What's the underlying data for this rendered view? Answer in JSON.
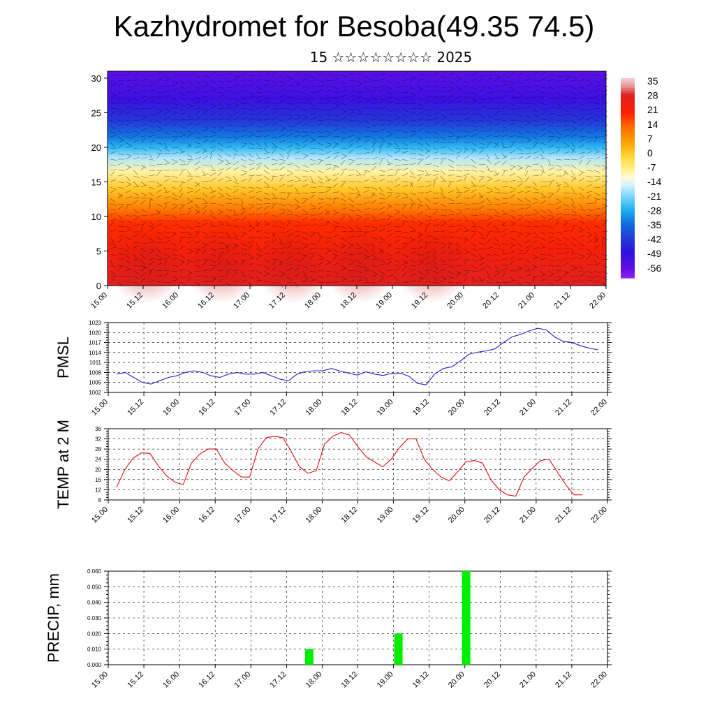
{
  "header": {
    "title": "Kazhydromet for Besoba(49.35 74.5)",
    "subtitle": "15 ☆☆☆☆☆☆☆☆ 2025"
  },
  "colors": {
    "pmsl_line": "#1f1fd6",
    "temp_line": "#e01010",
    "precip_bar": "#00ee00",
    "grid": "#000000"
  },
  "chart_data": [
    {
      "type": "heatmap",
      "title": "",
      "ylabel": "",
      "ylim": [
        0,
        31
      ],
      "yticks": [
        0,
        5,
        10,
        15,
        20,
        25,
        30
      ],
      "x_ticks": [
        "15.00",
        "15.12",
        "16.00",
        "16.12",
        "17.00",
        "17.12",
        "18.00",
        "18.12",
        "19.00",
        "19.12",
        "20.00",
        "20.12",
        "21.00",
        "21.12",
        "22.00"
      ],
      "colorbar": {
        "labels": [
          "35",
          "28",
          "21",
          "14",
          "7",
          "0",
          "-7",
          "-14",
          "-21",
          "-28",
          "-35",
          "-42",
          "-49",
          "-56"
        ],
        "stops": [
          {
            "v": 38,
            "color": "#f5c8c8"
          },
          {
            "v": 35,
            "color": "#e8a0a0"
          },
          {
            "v": 30,
            "color": "#e02020"
          },
          {
            "v": 21,
            "color": "#ff2000"
          },
          {
            "v": 14,
            "color": "#ff6a00"
          },
          {
            "v": 7,
            "color": "#ff9a00"
          },
          {
            "v": 0,
            "color": "#ffd030"
          },
          {
            "v": -7,
            "color": "#fff080"
          },
          {
            "v": -12,
            "color": "#fffbe0"
          },
          {
            "v": -16,
            "color": "#d0f0ff"
          },
          {
            "v": -21,
            "color": "#80d8ff"
          },
          {
            "v": -28,
            "color": "#20b0f0"
          },
          {
            "v": -35,
            "color": "#1070e0"
          },
          {
            "v": -42,
            "color": "#2040d8"
          },
          {
            "v": -50,
            "color": "#3010e0"
          },
          {
            "v": -58,
            "color": "#6010e8"
          },
          {
            "v": -62,
            "color": "#8a20f0"
          }
        ]
      },
      "profile": [
        {
          "h": 0,
          "t": 30
        },
        {
          "h": 5,
          "t": 24
        },
        {
          "h": 9,
          "t": 20
        },
        {
          "h": 11,
          "t": 12
        },
        {
          "h": 14,
          "t": 1
        },
        {
          "h": 16.5,
          "t": -9
        },
        {
          "h": 18.5,
          "t": -18
        },
        {
          "h": 20,
          "t": -27
        },
        {
          "h": 21.5,
          "t": -34
        },
        {
          "h": 24,
          "t": -44
        },
        {
          "h": 27,
          "t": -52
        },
        {
          "h": 31,
          "t": -57
        }
      ]
    },
    {
      "type": "line",
      "title": "",
      "ylabel": "PMSL",
      "ylim": [
        1002,
        1023
      ],
      "yticks": [
        1002,
        1005,
        1008,
        1011,
        1014,
        1017,
        1020,
        1023
      ],
      "x_ticks": [
        "15.00",
        "15.12",
        "16.00",
        "16.12",
        "17.00",
        "17.12",
        "18.00",
        "18.12",
        "19.00",
        "19.12",
        "20.00",
        "20.12",
        "21.00",
        "21.12",
        "22.00"
      ],
      "x_start": 0.25,
      "x_step": 0.25,
      "values": [
        1007.5,
        1008,
        1006.5,
        1005,
        1004.5,
        1005.5,
        1006.5,
        1007,
        1008,
        1008.5,
        1008,
        1007,
        1006.5,
        1007.5,
        1008,
        1007.5,
        1007.5,
        1008,
        1007,
        1006,
        1005.5,
        1007.5,
        1008.3,
        1008.5,
        1008.5,
        1009.2,
        1008.4,
        1007.8,
        1007.2,
        1008.2,
        1007.5,
        1007.1,
        1007.7,
        1007.8,
        1006.9,
        1004.7,
        1004.3,
        1007.5,
        1009.2,
        1009.7,
        1011.5,
        1013.5,
        1014.1,
        1014.5,
        1015.1,
        1017,
        1018.7,
        1019.5,
        1020.5,
        1021.3,
        1020.8,
        1018.6,
        1017.3,
        1017,
        1016,
        1015.3,
        1014.8
      ]
    },
    {
      "type": "line",
      "title": "",
      "ylabel": "TEMP at 2 M",
      "ylim": [
        8,
        36
      ],
      "yticks": [
        8,
        12,
        16,
        20,
        24,
        28,
        32,
        36
      ],
      "x_ticks": [
        "15.00",
        "15.12",
        "16.00",
        "16.12",
        "17.00",
        "17.12",
        "18.00",
        "18.12",
        "19.00",
        "19.12",
        "20.00",
        "20.12",
        "21.00",
        "21.12",
        "22.00"
      ],
      "x_start": 0.0,
      "x_step": 0.125,
      "values": [
        13,
        20,
        24.5,
        26.5,
        26.3,
        21.5,
        17.5,
        15,
        14,
        22.5,
        26,
        28,
        28,
        22.5,
        19.5,
        17,
        17,
        28,
        32.5,
        33,
        32.5,
        27,
        21,
        18.5,
        19.5,
        30,
        33,
        34.5,
        33.5,
        29,
        25,
        23,
        21,
        24,
        28.5,
        32,
        32,
        24,
        20,
        17,
        15.5,
        19,
        23,
        23.5,
        22.5,
        16,
        12,
        10,
        9.5,
        17,
        20.5,
        23.5,
        24,
        19,
        14,
        10,
        10
      ]
    },
    {
      "type": "bar",
      "title": "",
      "ylabel": "PRECIP, mm",
      "ylim": [
        0,
        0.06
      ],
      "yticks": [
        "0.000",
        "0.010",
        "0.020",
        "0.030",
        "0.040",
        "0.050",
        "0.060"
      ],
      "x_ticks": [
        "15.00",
        "15.12",
        "16.00",
        "16.12",
        "17.00",
        "17.12",
        "18.00",
        "18.12",
        "19.00",
        "19.12",
        "20.00",
        "20.12",
        "21.00",
        "21.12",
        "22.00"
      ],
      "bars": [
        {
          "x": 2.75,
          "value": 0.01
        },
        {
          "x": 4.0,
          "value": 0.02
        },
        {
          "x": 4.95,
          "value": 0.06
        }
      ]
    }
  ]
}
